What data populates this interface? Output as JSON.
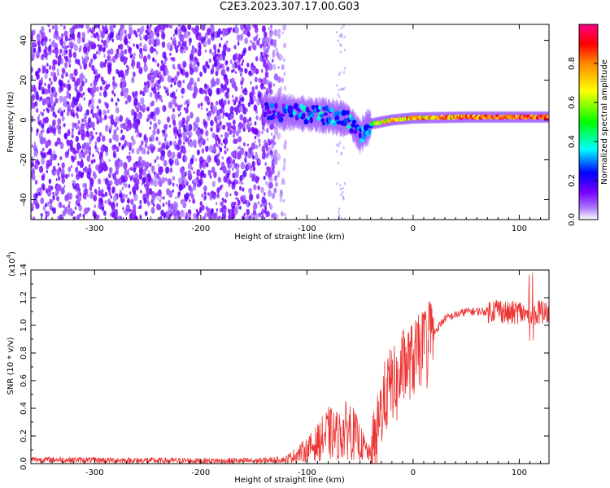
{
  "title": "C2E3.2023.307.17.00.G03",
  "chart_data": [
    {
      "type": "heatmap",
      "title": "C2E3.2023.307.17.00.G03",
      "xlabel": "Height of straight line (km)",
      "ylabel": "Frequency (Hz)",
      "xlim": [
        -360,
        128
      ],
      "ylim": [
        -50,
        48
      ],
      "xticks": [
        -300,
        -200,
        -100,
        0,
        100
      ],
      "yticks": [
        -40,
        -20,
        0,
        20,
        40
      ],
      "xtick_labels": [
        "-300",
        "-200",
        "-100",
        "0",
        "100"
      ],
      "ytick_labels": [
        "-40",
        "-20",
        "0",
        "20",
        "40"
      ],
      "colorbar": {
        "label": "Normalized spectral amplitude",
        "range": [
          0.0,
          1.0
        ],
        "ticks": [
          0.0,
          0.2,
          0.4,
          0.6,
          0.8
        ],
        "tick_labels": [
          "0.0",
          "0.2",
          "0.4",
          "0.6",
          "0.8"
        ],
        "colormap": [
          "#ffffff",
          "#7700ff",
          "#0000ff",
          "#00ffff",
          "#00ff00",
          "#ffff00",
          "#ff8800",
          "#ff0000",
          "#ff0088"
        ]
      },
      "signal_track": [
        {
          "x": -140,
          "freq": 5,
          "amp": 0.3
        },
        {
          "x": -120,
          "freq": 4,
          "amp": 0.35
        },
        {
          "x": -100,
          "freq": 3,
          "amp": 0.4
        },
        {
          "x": -80,
          "freq": 2,
          "amp": 0.42
        },
        {
          "x": -60,
          "freq": 0,
          "amp": 0.45
        },
        {
          "x": -50,
          "freq": -8,
          "amp": 0.3
        },
        {
          "x": -40,
          "freq": -2,
          "amp": 0.5
        },
        {
          "x": -20,
          "freq": 0,
          "amp": 0.7
        },
        {
          "x": 0,
          "freq": 1,
          "amp": 0.75
        },
        {
          "x": 50,
          "freq": 1.5,
          "amp": 0.8
        },
        {
          "x": 100,
          "freq": 1.5,
          "amp": 0.85
        },
        {
          "x": 128,
          "freq": 1.5,
          "amp": 0.85
        }
      ],
      "noise_region_x": [
        -360,
        -140
      ]
    },
    {
      "type": "line",
      "xlabel": "Height of straight line (km)",
      "ylabel": "SNR (10 * v/v)",
      "y_multiplier_label": "(x10",
      "y_multiplier_exp": "4",
      "y_multiplier_close": ")",
      "xlim": [
        -360,
        128
      ],
      "ylim": [
        0,
        14000
      ],
      "xticks": [
        -300,
        -200,
        -100,
        0,
        100
      ],
      "xtick_labels": [
        "-300",
        "-200",
        "-100",
        "0",
        "100"
      ],
      "yticks": [
        0,
        2000,
        4000,
        6000,
        8000,
        10000,
        12000,
        14000
      ],
      "ytick_labels": [
        "0.0",
        "0.2",
        "0.4",
        "0.6",
        "0.8",
        "1.0",
        "1.2",
        "1.4"
      ],
      "color": "#ee3333",
      "series": [
        {
          "x": [
            -360,
            -300,
            -200,
            -150,
            -120,
            -100,
            -90,
            -80,
            -70,
            -60,
            -50,
            -40,
            -35,
            -30,
            -25,
            -20,
            -15,
            -10,
            0,
            10,
            20,
            30,
            50,
            70,
            80,
            90,
            100,
            110,
            120,
            128
          ],
          "values": [
            300,
            250,
            200,
            200,
            300,
            1000,
            1500,
            2200,
            2000,
            2600,
            1500,
            600,
            1500,
            4000,
            5000,
            6000,
            5500,
            7000,
            7500,
            8500,
            9500,
            10500,
            11000,
            11000,
            11200,
            10800,
            11000,
            10600,
            11000,
            10800
          ]
        }
      ]
    }
  ]
}
